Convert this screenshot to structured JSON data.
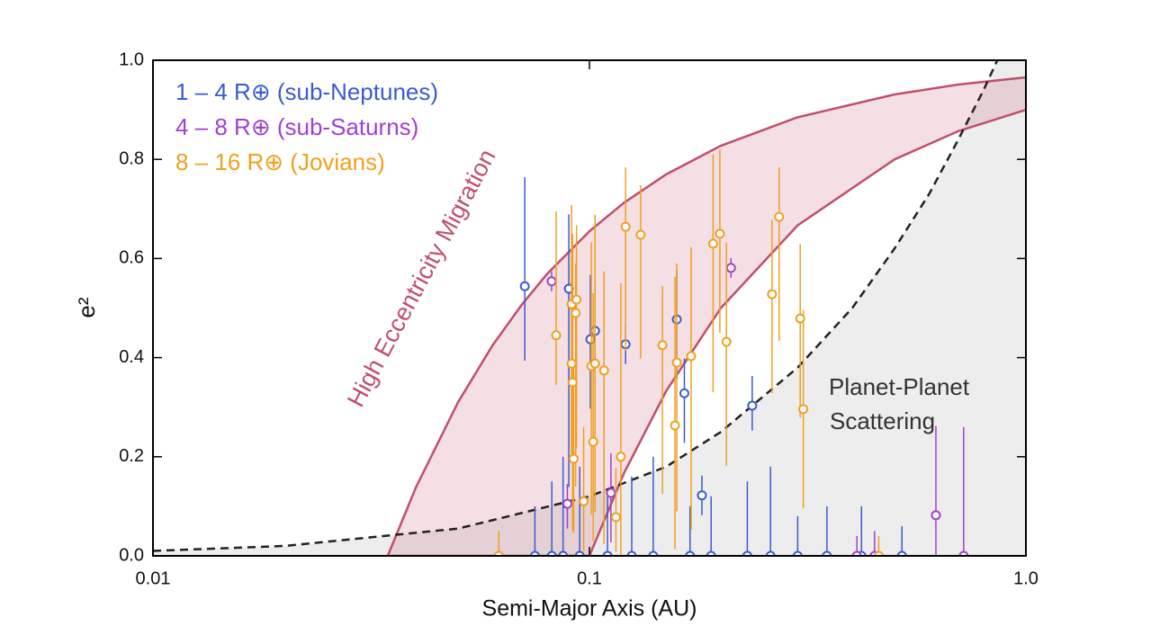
{
  "chart_data": {
    "type": "scatter",
    "x_label": "Semi-Major Axis (AU)",
    "y_label": "e²",
    "log_x": true,
    "xlim": [
      0.01,
      1
    ],
    "ylim": [
      0,
      1
    ],
    "xticks": [
      0.01,
      0.1,
      {
        "value": 1,
        "label": "1.0"
      }
    ],
    "yticks": [
      {
        "value": 0,
        "label": "0.0"
      },
      0.2,
      0.4,
      0.6,
      0.8,
      {
        "value": 1,
        "label": "1.0"
      }
    ],
    "legend": "upper left",
    "annotations": [
      "High Eccentricity Migration",
      "Planet-Planet",
      "Scattering"
    ],
    "migration_band": {
      "color": "#c0506a",
      "x": [
        0.0345,
        0.04,
        0.05,
        0.06,
        0.07,
        0.08,
        0.1,
        0.12,
        0.15,
        0.2,
        0.3,
        0.5,
        0.7,
        1
      ],
      "upper": [
        0,
        0.1375,
        0.31,
        0.425,
        0.507,
        0.569,
        0.655,
        0.7125,
        0.77,
        0.8275,
        0.885,
        0.931,
        0.951,
        0.9655
      ],
      "lower": [
        0,
        0,
        0,
        0,
        0,
        0,
        0,
        0.167,
        0.333,
        0.5,
        0.667,
        0.8,
        0.857,
        0.9
      ]
    },
    "scattering_curve": {
      "x": [
        0.01,
        0.02,
        0.05,
        0.1,
        0.15,
        0.2,
        0.3,
        0.4,
        0.5,
        0.6,
        0.7,
        0.8,
        0.86
      ],
      "y": [
        0.01,
        0.02,
        0.055,
        0.12,
        0.18,
        0.25,
        0.38,
        0.5,
        0.62,
        0.73,
        0.84,
        0.94,
        1
      ]
    },
    "series": [
      {
        "name": "1 – 4 R⊕ (sub-Neptunes)",
        "color": "#3a5bd0",
        "x": [
          0.0711,
          0.0897,
          0.1005,
          0.103,
          0.121,
          0.1585,
          0.165,
          0.236,
          0.181,
          0.075,
          0.082,
          0.087,
          0.095,
          0.11,
          0.125,
          0.14,
          0.17,
          0.19,
          0.23,
          0.26,
          0.3,
          0.35,
          0.42,
          0.52
        ],
        "values": [
          0.544,
          0.539,
          0.437,
          0.454,
          0.427,
          0.477,
          0.328,
          0.303,
          0.122,
          0,
          0,
          0,
          0,
          0,
          0,
          0,
          0,
          0,
          0,
          0,
          0,
          0,
          0,
          0
        ],
        "err_high": [
          0.22,
          0.15,
          0.13,
          0.1,
          0.04,
          0.1,
          0.07,
          0.06,
          0.04,
          0.1,
          0.15,
          0.2,
          0.18,
          0.12,
          0.16,
          0.2,
          0.1,
          0.12,
          0.15,
          0.18,
          0.08,
          0.1,
          0.1,
          0.06
        ],
        "err_low": [
          0.15,
          0.4,
          0.14,
          0.1,
          0.04,
          0.12,
          0.1,
          0.05,
          0.04,
          0,
          0,
          0,
          0,
          0,
          0,
          0,
          0,
          0,
          0,
          0,
          0,
          0,
          0,
          0
        ]
      },
      {
        "name": "4 – 8 R⊕ (sub-Saturns)",
        "color": "#a040d0",
        "x": [
          0.0819,
          0.211,
          0.622,
          0.112,
          0.72,
          0.089,
          0.45,
          0.41
        ],
        "values": [
          0.554,
          0.581,
          0.082,
          0.127,
          0,
          0.105,
          0,
          0
        ],
        "err_high": [
          0.02,
          0.02,
          0.18,
          0.08,
          0.26,
          0.04,
          0.05,
          0.04
        ],
        "err_low": [
          0.02,
          0.02,
          0.08,
          0.1,
          0,
          0.05,
          0,
          0
        ]
      },
      {
        "name": "8 – 16 R⊕ (Jovians)",
        "color": "#f0a020",
        "x": [
          0.0839,
          0.091,
          0.093,
          0.0934,
          0.091,
          0.0915,
          0.092,
          0.101,
          0.103,
          0.102,
          0.108,
          0.118,
          0.121,
          0.131,
          0.147,
          0.1585,
          0.157,
          0.171,
          0.192,
          0.199,
          0.206,
          0.262,
          0.272,
          0.304,
          0.309,
          0.115,
          0.097,
          0.062,
          0.46
        ],
        "values": [
          0.445,
          0.508,
          0.49,
          0.517,
          0.388,
          0.35,
          0.196,
          0.383,
          0.388,
          0.23,
          0.374,
          0.2,
          0.664,
          0.648,
          0.425,
          0.39,
          0.263,
          0.403,
          0.63,
          0.65,
          0.432,
          0.528,
          0.684,
          0.479,
          0.296,
          0.078,
          0.11,
          0,
          0
        ],
        "err_high": [
          0.25,
          0.2,
          0.1,
          0.15,
          0.2,
          0.3,
          0.2,
          0.25,
          0.3,
          0.3,
          0.2,
          0.35,
          0.12,
          0.1,
          0.12,
          0.2,
          0.3,
          0.22,
          0.18,
          0.17,
          0.2,
          0.15,
          0.1,
          0.15,
          0.2,
          0.1,
          0.15,
          0.05,
          0.04
        ],
        "err_low": [
          0.1,
          0.3,
          0.35,
          0.3,
          0.2,
          0.3,
          0.15,
          0.3,
          0.3,
          0.2,
          0.35,
          0.2,
          0.25,
          0.25,
          0.3,
          0.3,
          0.25,
          0.35,
          0.3,
          0.2,
          0.25,
          0.2,
          0.25,
          0.2,
          0.2,
          0.07,
          0.1,
          0,
          0
        ]
      }
    ]
  }
}
